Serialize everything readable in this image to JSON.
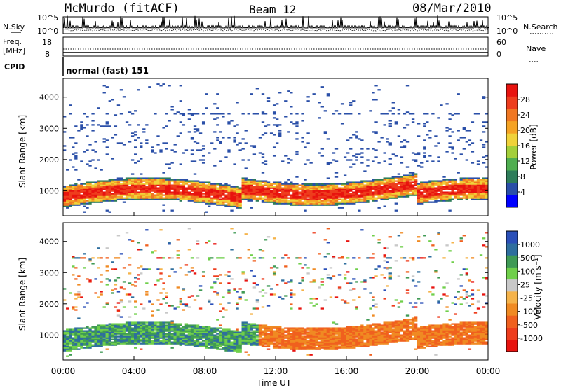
{
  "header": {
    "station": "McMurdo (fitACF)",
    "beam": "Beam 12",
    "date": "08/Mar/2010"
  },
  "top_panels": {
    "nsky_label": "N.Sky",
    "nsearch_label": "N.Search",
    "nsky_ticks": [
      "10^5",
      "10^0"
    ],
    "nsearch_ticks": [
      "10^5",
      "10^0"
    ],
    "freq_label_1": "Freq.",
    "freq_label_2": "[MHz]",
    "freq_ticks": [
      "18",
      "8"
    ],
    "nave_label": "Nave",
    "nave_ticks": [
      "60",
      "0"
    ],
    "cpid_label": "CPID",
    "cpid_value": "normal (fast) 151"
  },
  "chart_data": [
    {
      "type": "heatmap",
      "name": "power",
      "ylabel": "Slant Range [km]",
      "yticks": [
        "4000",
        "3000",
        "2000",
        "1000"
      ],
      "ylim": [
        200,
        4600
      ],
      "xlim": [
        0,
        24
      ],
      "colorbar": {
        "label": "Power [dB]",
        "ticks": [
          "28",
          "24",
          "20",
          "16",
          "12",
          "8",
          "4"
        ],
        "colors": [
          "#0000ff",
          "#2a4fa8",
          "#2e7d5a",
          "#4fae50",
          "#a3cf3a",
          "#f0d23a",
          "#f5a324",
          "#f07722",
          "#ee3d1d",
          "#e8130f"
        ]
      }
    },
    {
      "type": "heatmap",
      "name": "velocity",
      "ylabel": "Slant Range [km]",
      "yticks": [
        "4000",
        "3000",
        "2000",
        "1000"
      ],
      "ylim": [
        200,
        4600
      ],
      "xlim": [
        0,
        24
      ],
      "xticks": [
        "00:00",
        "04:00",
        "08:00",
        "12:00",
        "16:00",
        "20:00",
        "00:00"
      ],
      "xlabel": "Time UT",
      "colorbar": {
        "label": "Velocity [m s⁻¹]",
        "ticks": [
          "1000",
          "500",
          "100",
          "25",
          "-25",
          "-100",
          "-500",
          "-1000"
        ],
        "colors": [
          "#e8130f",
          "#ee3d1d",
          "#f0601e",
          "#f08a22",
          "#f5b34a",
          "#c8c8c8",
          "#6fcf4a",
          "#3f9a55",
          "#2e6e9e",
          "#2a4fb8"
        ]
      }
    }
  ]
}
